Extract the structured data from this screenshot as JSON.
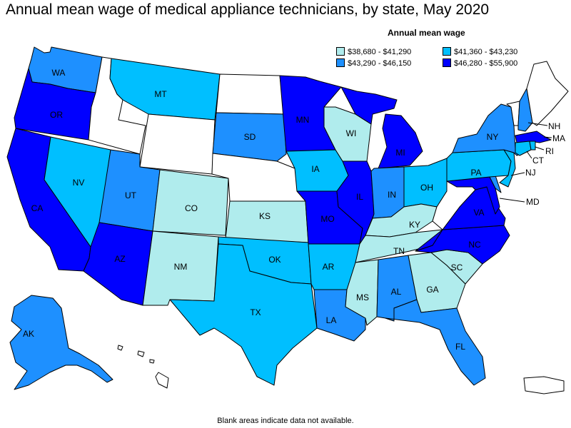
{
  "title": "Annual mean wage of medical appliance technicians, by state, May 2020",
  "legend": {
    "title": "Annual mean wage",
    "items": [
      {
        "label": "$38,680 - $41,290",
        "color": "#b0eced"
      },
      {
        "label": "$41,360 - $43,230",
        "color": "#00bfff"
      },
      {
        "label": "$43,290 - $46,150",
        "color": "#1e90ff"
      },
      {
        "label": "$46,280 - $55,900",
        "color": "#0000ff"
      }
    ]
  },
  "footnote": "Blank areas indicate data not available.",
  "states": {
    "WA": {
      "label": "WA",
      "tier": 2
    },
    "OR": {
      "label": "OR",
      "tier": 3
    },
    "CA": {
      "label": "CA",
      "tier": 3
    },
    "NV": {
      "label": "NV",
      "tier": 1
    },
    "ID": {
      "label": "",
      "tier": null
    },
    "MT": {
      "label": "MT",
      "tier": 1
    },
    "WY": {
      "label": "",
      "tier": null
    },
    "UT": {
      "label": "UT",
      "tier": 2
    },
    "AZ": {
      "label": "AZ",
      "tier": 3
    },
    "CO": {
      "label": "CO",
      "tier": 0
    },
    "NM": {
      "label": "NM",
      "tier": 0
    },
    "ND": {
      "label": "",
      "tier": null
    },
    "SD": {
      "label": "SD",
      "tier": 2
    },
    "NE": {
      "label": "",
      "tier": null
    },
    "KS": {
      "label": "KS",
      "tier": 0
    },
    "OK": {
      "label": "OK",
      "tier": 1
    },
    "TX": {
      "label": "TX",
      "tier": 1
    },
    "MN": {
      "label": "MN",
      "tier": 3
    },
    "IA": {
      "label": "IA",
      "tier": 1
    },
    "MO": {
      "label": "MO",
      "tier": 3
    },
    "AR": {
      "label": "AR",
      "tier": 1
    },
    "LA": {
      "label": "LA",
      "tier": 2
    },
    "WI": {
      "label": "WI",
      "tier": 0
    },
    "IL": {
      "label": "IL",
      "tier": 3
    },
    "MI": {
      "label": "MI",
      "tier": 3
    },
    "IN": {
      "label": "IN",
      "tier": 2
    },
    "OH": {
      "label": "OH",
      "tier": 1
    },
    "KY": {
      "label": "KY",
      "tier": 0
    },
    "TN": {
      "label": "TN",
      "tier": 0
    },
    "MS": {
      "label": "MS",
      "tier": 0
    },
    "AL": {
      "label": "AL",
      "tier": 2
    },
    "GA": {
      "label": "GA",
      "tier": 0
    },
    "FL": {
      "label": "FL",
      "tier": 2
    },
    "SC": {
      "label": "SC",
      "tier": 0
    },
    "NC": {
      "label": "NC",
      "tier": 3
    },
    "VA": {
      "label": "VA",
      "tier": 3
    },
    "WV": {
      "label": "",
      "tier": null
    },
    "MD": {
      "label": "MD",
      "tier": 3
    },
    "DE": {
      "label": "",
      "tier": 2
    },
    "PA": {
      "label": "PA",
      "tier": 1
    },
    "NJ": {
      "label": "NJ",
      "tier": 1
    },
    "NY": {
      "label": "NY",
      "tier": 2
    },
    "CT": {
      "label": "CT",
      "tier": 1
    },
    "RI": {
      "label": "RI",
      "tier": 1
    },
    "MA": {
      "label": "MA",
      "tier": 3
    },
    "VT": {
      "label": "",
      "tier": null
    },
    "NH": {
      "label": "NH",
      "tier": 2
    },
    "ME": {
      "label": "",
      "tier": null
    },
    "AK": {
      "label": "AK",
      "tier": 2
    },
    "HI": {
      "label": "",
      "tier": null
    },
    "PR": {
      "label": "",
      "tier": null
    }
  }
}
